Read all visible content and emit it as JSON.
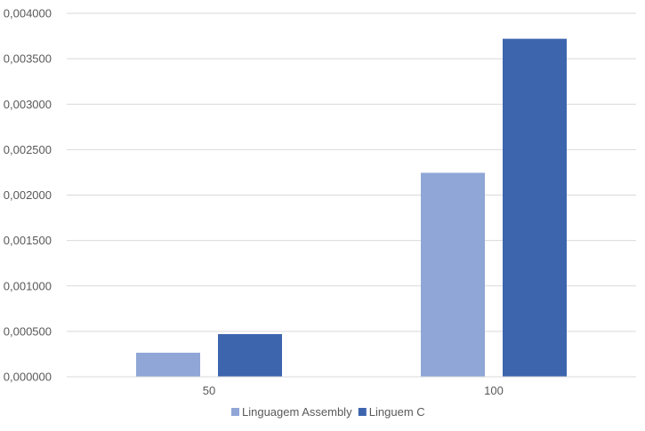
{
  "chart_data": {
    "type": "bar",
    "categories": [
      "50",
      "100"
    ],
    "series": [
      {
        "name": "Linguagem Assembly",
        "color": "#8FA6D6",
        "values": [
          0.000265,
          0.002245
        ]
      },
      {
        "name": "Linguem C",
        "color": "#3D65AE",
        "values": [
          0.00047,
          0.00372
        ]
      }
    ],
    "ylim": [
      0,
      0.004
    ],
    "yticks": [
      "0,000000",
      "0,000500",
      "0,001000",
      "0,001500",
      "0,002000",
      "0,002500",
      "0,003000",
      "0,003500",
      "0,004000"
    ],
    "grid": true,
    "legend": "bottom"
  }
}
